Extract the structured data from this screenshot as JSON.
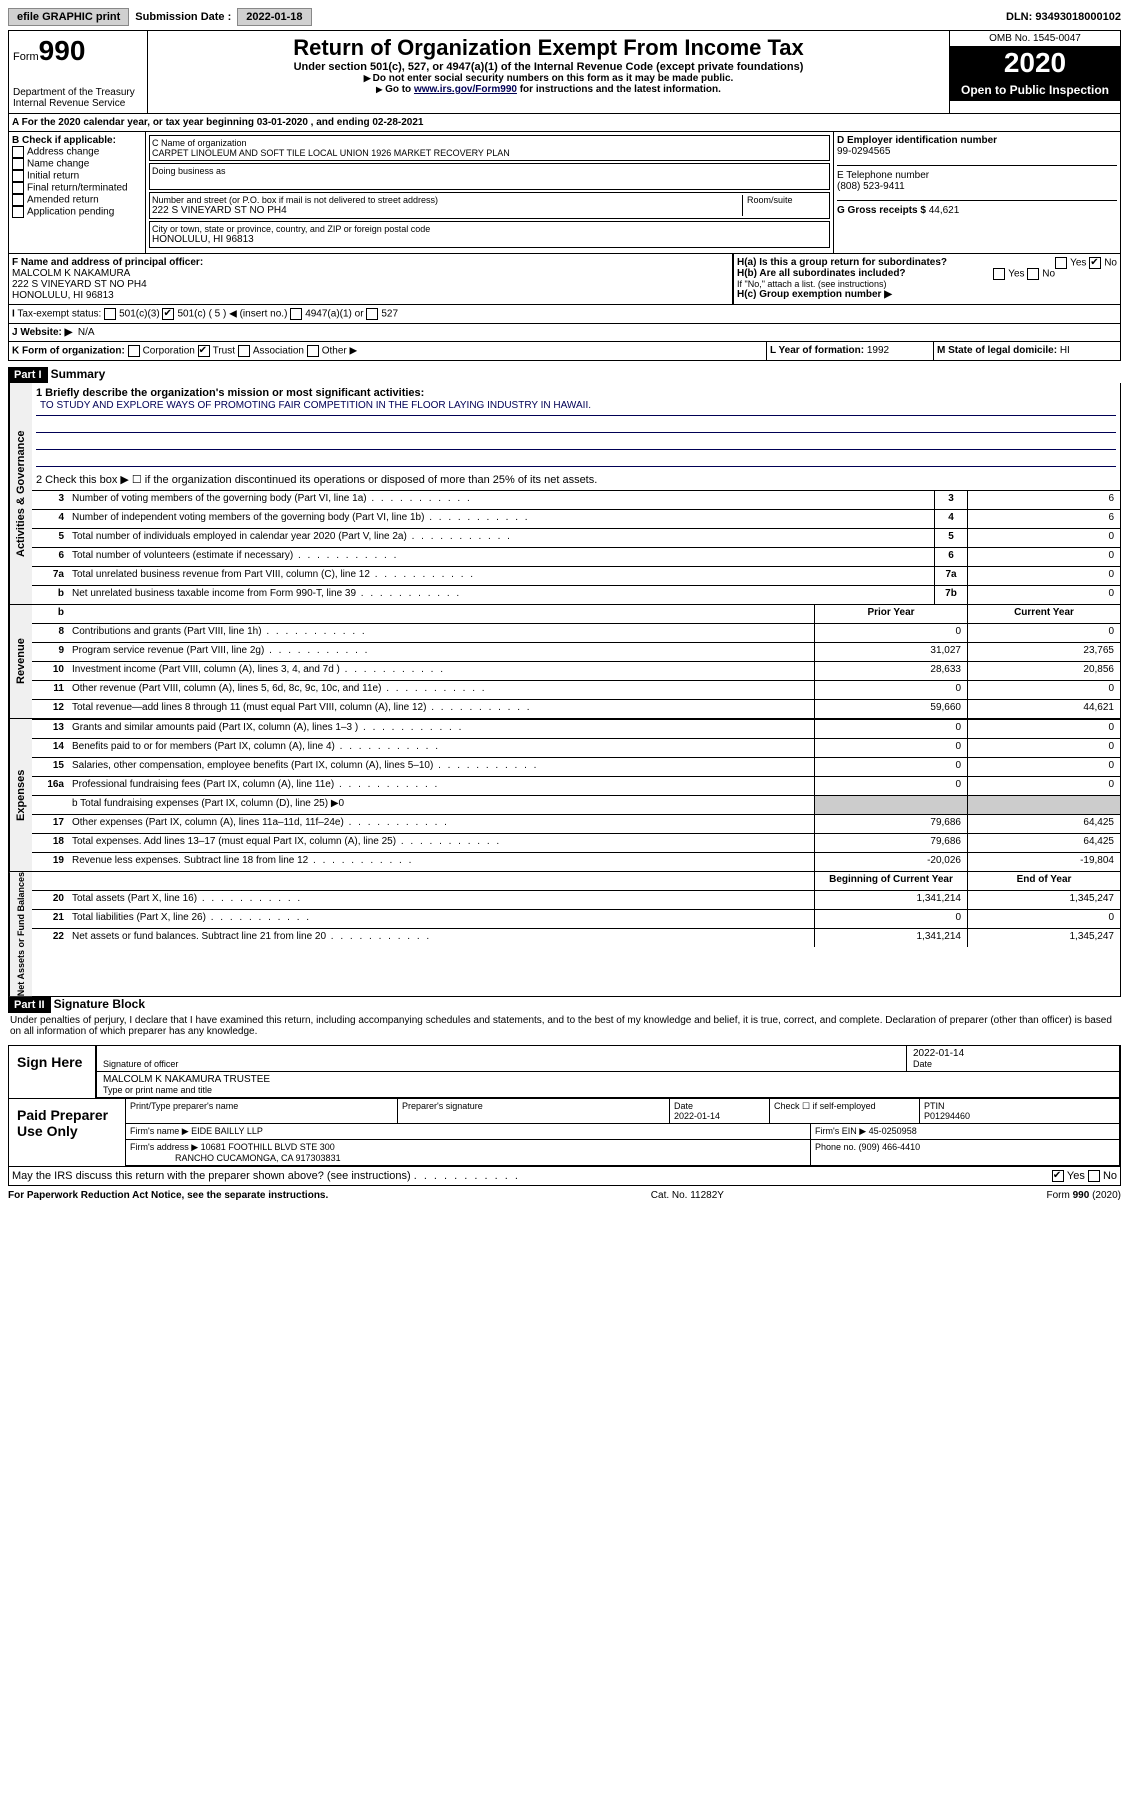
{
  "topbar": {
    "efile": "efile GRAPHIC print",
    "submission_label": "Submission Date :",
    "submission_date": "2022-01-18",
    "dln_label": "DLN:",
    "dln": "93493018000102"
  },
  "header": {
    "form_word": "Form",
    "form_num": "990",
    "dept": "Department of the Treasury",
    "irs": "Internal Revenue Service",
    "title": "Return of Organization Exempt From Income Tax",
    "sub1": "Under section 501(c), 527, or 4947(a)(1) of the Internal Revenue Code (except private foundations)",
    "sub2": "Do not enter social security numbers on this form as it may be made public.",
    "sub3_pre": "Go to ",
    "sub3_link": "www.irs.gov/Form990",
    "sub3_post": " for instructions and the latest information.",
    "omb": "OMB No. 1545-0047",
    "year": "2020",
    "open": "Open to Public Inspection"
  },
  "a_line": "For the 2020 calendar year, or tax year beginning 03-01-2020 , and ending 02-28-2021",
  "b": {
    "label": "B Check if applicable:",
    "items": [
      "Address change",
      "Name change",
      "Initial return",
      "Final return/terminated",
      "Amended return",
      "Application pending"
    ]
  },
  "c": {
    "name_label": "C Name of organization",
    "name": "CARPET LINOLEUM AND SOFT TILE LOCAL UNION 1926 MARKET RECOVERY PLAN",
    "dba_label": "Doing business as",
    "street_label": "Number and street (or P.O. box if mail is not delivered to street address)",
    "room_label": "Room/suite",
    "street": "222 S VINEYARD ST NO PH4",
    "city_label": "City or town, state or province, country, and ZIP or foreign postal code",
    "city": "HONOLULU, HI  96813"
  },
  "d": {
    "label": "D Employer identification number",
    "val": "99-0294565"
  },
  "e": {
    "label": "E Telephone number",
    "val": "(808) 523-9411"
  },
  "g": {
    "label": "G Gross receipts $",
    "val": "44,621"
  },
  "f": {
    "label": "F Name and address of principal officer:",
    "name": "MALCOLM K NAKAMURA",
    "addr1": "222 S VINEYARD ST NO PH4",
    "addr2": "HONOLULU, HI  96813"
  },
  "h": {
    "a": "H(a)  Is this a group return for subordinates?",
    "b": "H(b)  Are all subordinates included?",
    "b_note": "If \"No,\" attach a list. (see instructions)",
    "c": "H(c)  Group exemption number ▶",
    "yes": "Yes",
    "no": "No"
  },
  "i": {
    "label": "Tax-exempt status:",
    "opt1": "501(c)(3)",
    "opt2": "501(c) ( 5 ) ◀ (insert no.)",
    "opt3": "4947(a)(1) or",
    "opt4": "527"
  },
  "j": {
    "label": "J  Website: ▶",
    "val": "N/A"
  },
  "k": {
    "label": "K Form of organization:",
    "corp": "Corporation",
    "trust": "Trust",
    "assoc": "Association",
    "other": "Other ▶"
  },
  "l": {
    "label": "L Year of formation:",
    "val": "1992"
  },
  "m": {
    "label": "M State of legal domicile:",
    "val": "HI"
  },
  "part1": {
    "header": "Part I",
    "title": "Summary",
    "q1": "1  Briefly describe the organization's mission or most significant activities:",
    "mission": "TO STUDY AND EXPLORE WAYS OF PROMOTING FAIR COMPETITION IN THE FLOOR LAYING INDUSTRY IN HAWAII.",
    "q2": "2  Check this box ▶ ☐ if the organization discontinued its operations or disposed of more than 25% of its net assets.",
    "rows_single": [
      {
        "n": "3",
        "t": "Number of voting members of the governing body (Part VI, line 1a)",
        "box": "3",
        "v": "6"
      },
      {
        "n": "4",
        "t": "Number of independent voting members of the governing body (Part VI, line 1b)",
        "box": "4",
        "v": "6"
      },
      {
        "n": "5",
        "t": "Total number of individuals employed in calendar year 2020 (Part V, line 2a)",
        "box": "5",
        "v": "0"
      },
      {
        "n": "6",
        "t": "Total number of volunteers (estimate if necessary)",
        "box": "6",
        "v": "0"
      },
      {
        "n": "7a",
        "t": "Total unrelated business revenue from Part VIII, column (C), line 12",
        "box": "7a",
        "v": "0"
      },
      {
        "n": "b",
        "t": "Net unrelated business taxable income from Form 990-T, line 39",
        "box": "7b",
        "v": "0"
      }
    ],
    "prior_hdr": "Prior Year",
    "current_hdr": "Current Year",
    "rev_rows": [
      {
        "n": "8",
        "t": "Contributions and grants (Part VIII, line 1h)",
        "p": "0",
        "c": "0"
      },
      {
        "n": "9",
        "t": "Program service revenue (Part VIII, line 2g)",
        "p": "31,027",
        "c": "23,765"
      },
      {
        "n": "10",
        "t": "Investment income (Part VIII, column (A), lines 3, 4, and 7d )",
        "p": "28,633",
        "c": "20,856"
      },
      {
        "n": "11",
        "t": "Other revenue (Part VIII, column (A), lines 5, 6d, 8c, 9c, 10c, and 11e)",
        "p": "0",
        "c": "0"
      },
      {
        "n": "12",
        "t": "Total revenue—add lines 8 through 11 (must equal Part VIII, column (A), line 12)",
        "p": "59,660",
        "c": "44,621"
      }
    ],
    "exp_rows": [
      {
        "n": "13",
        "t": "Grants and similar amounts paid (Part IX, column (A), lines 1–3 )",
        "p": "0",
        "c": "0"
      },
      {
        "n": "14",
        "t": "Benefits paid to or for members (Part IX, column (A), line 4)",
        "p": "0",
        "c": "0"
      },
      {
        "n": "15",
        "t": "Salaries, other compensation, employee benefits (Part IX, column (A), lines 5–10)",
        "p": "0",
        "c": "0"
      },
      {
        "n": "16a",
        "t": "Professional fundraising fees (Part IX, column (A), line 11e)",
        "p": "0",
        "c": "0"
      }
    ],
    "line_b": "b  Total fundraising expenses (Part IX, column (D), line 25) ▶0",
    "exp_rows2": [
      {
        "n": "17",
        "t": "Other expenses (Part IX, column (A), lines 11a–11d, 11f–24e)",
        "p": "79,686",
        "c": "64,425"
      },
      {
        "n": "18",
        "t": "Total expenses. Add lines 13–17 (must equal Part IX, column (A), line 25)",
        "p": "79,686",
        "c": "64,425"
      },
      {
        "n": "19",
        "t": "Revenue less expenses. Subtract line 18 from line 12",
        "p": "-20,026",
        "c": "-19,804"
      }
    ],
    "begin_hdr": "Beginning of Current Year",
    "end_hdr": "End of Year",
    "net_rows": [
      {
        "n": "20",
        "t": "Total assets (Part X, line 16)",
        "p": "1,341,214",
        "c": "1,345,247"
      },
      {
        "n": "21",
        "t": "Total liabilities (Part X, line 26)",
        "p": "0",
        "c": "0"
      },
      {
        "n": "22",
        "t": "Net assets or fund balances. Subtract line 21 from line 20",
        "p": "1,341,214",
        "c": "1,345,247"
      }
    ],
    "side_gov": "Activities & Governance",
    "side_rev": "Revenue",
    "side_exp": "Expenses",
    "side_net": "Net Assets or Fund Balances"
  },
  "part2": {
    "header": "Part II",
    "title": "Signature Block",
    "perjury": "Under penalties of perjury, I declare that I have examined this return, including accompanying schedules and statements, and to the best of my knowledge and belief, it is true, correct, and complete. Declaration of preparer (other than officer) is based on all information of which preparer has any knowledge.",
    "sign_here": "Sign Here",
    "sig_officer": "Signature of officer",
    "date_label": "Date",
    "sig_date": "2022-01-14",
    "officer_name": "MALCOLM K NAKAMURA  TRUSTEE",
    "type_name": "Type or print name and title",
    "paid": "Paid Preparer Use Only",
    "prep_name_label": "Print/Type preparer's name",
    "prep_sig_label": "Preparer's signature",
    "prep_date_label": "Date",
    "prep_date": "2022-01-14",
    "self_emp": "Check ☐ if self-employed",
    "ptin_label": "PTIN",
    "ptin": "P01294460",
    "firm_name_label": "Firm's name  ▶",
    "firm_name": "EIDE BAILLY LLP",
    "firm_ein_label": "Firm's EIN ▶",
    "firm_ein": "45-0250958",
    "firm_addr_label": "Firm's address ▶",
    "firm_addr1": "10681 FOOTHILL BLVD STE 300",
    "firm_addr2": "RANCHO CUCAMONGA, CA  917303831",
    "phone_label": "Phone no.",
    "phone": "(909) 466-4410",
    "discuss": "May the IRS discuss this return with the preparer shown above? (see instructions)",
    "yes": "Yes",
    "no": "No"
  },
  "footer": {
    "left": "For Paperwork Reduction Act Notice, see the separate instructions.",
    "mid": "Cat. No. 11282Y",
    "right": "Form 990 (2020)"
  }
}
